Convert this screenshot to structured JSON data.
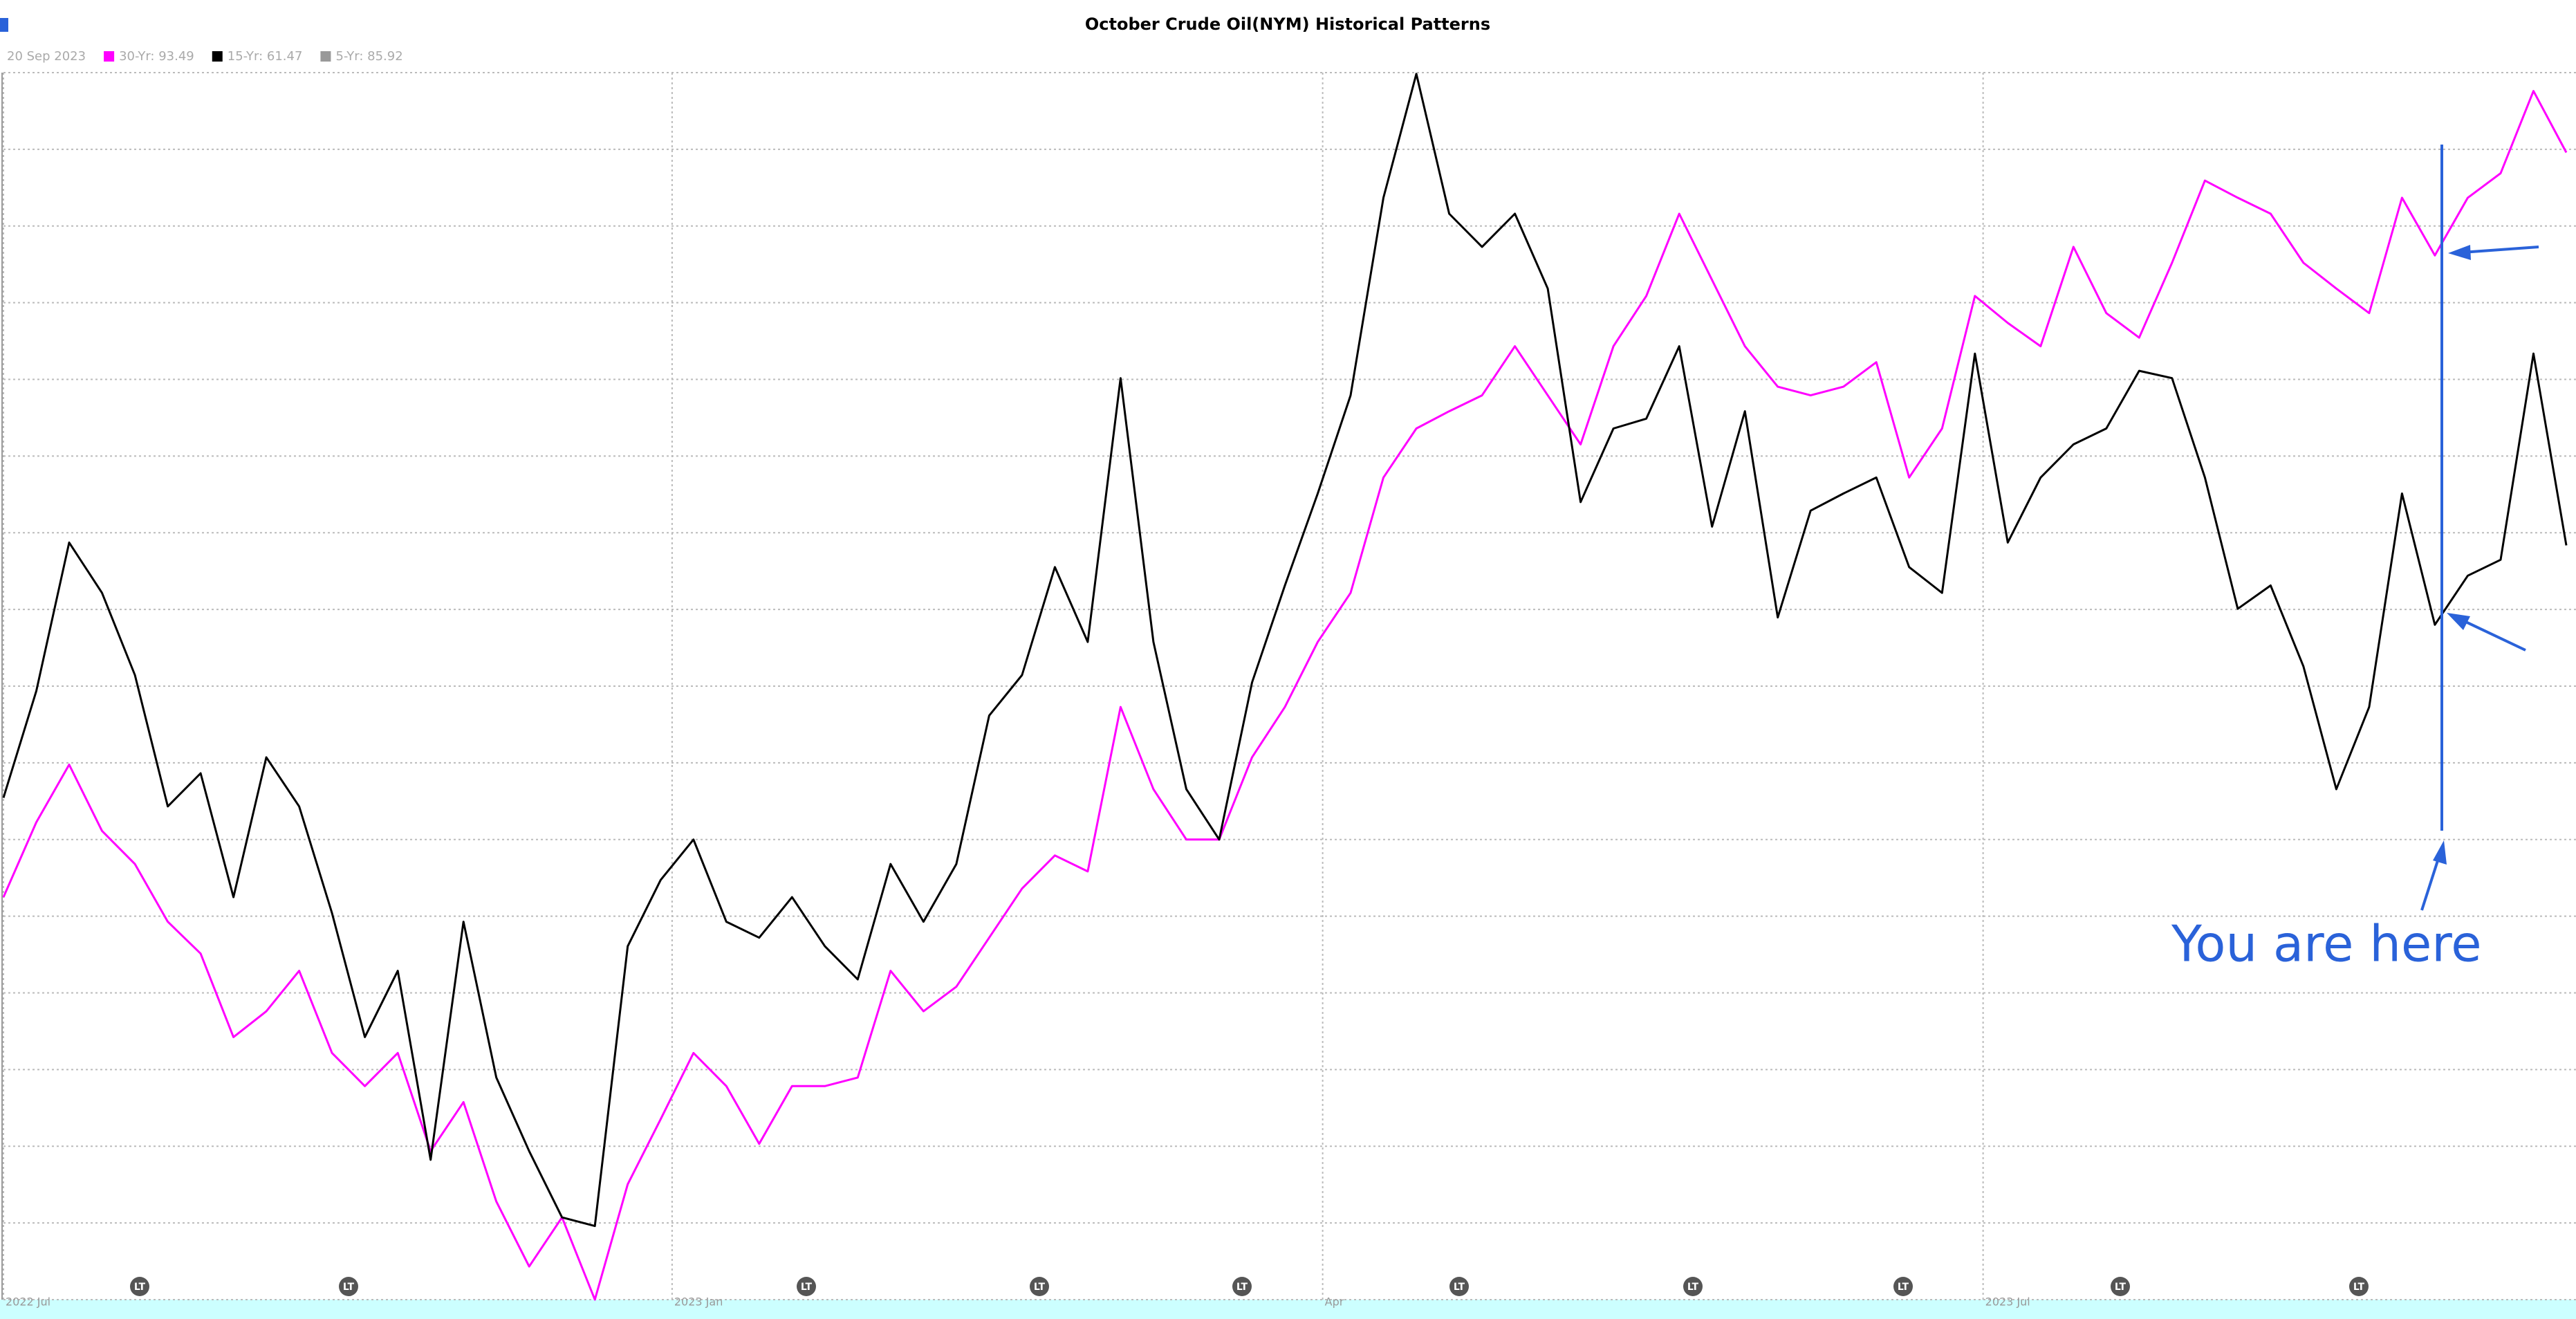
{
  "chart_data": {
    "type": "line",
    "title": "October Crude Oil(NYM) Historical Patterns",
    "legend_date": "20 Sep 2023",
    "annotation": "You are here",
    "event_labels": [
      "LT",
      "LT",
      "LT",
      "LT",
      "LT",
      "LT",
      "LT",
      "LT",
      "LT",
      "LT"
    ],
    "xlim": [
      0,
      78
    ],
    "xticks": [
      {
        "value": 0,
        "label": "2022 Jul"
      },
      {
        "value": 20.35,
        "label": "2023 Jan"
      },
      {
        "value": 40.15,
        "label": "Apr"
      },
      {
        "value": 60.25,
        "label": "2023 Jul"
      }
    ],
    "ylim": [
      0,
      100
    ],
    "yticks": [
      0,
      6.25,
      12.5,
      18.75,
      25,
      31.25,
      37.5,
      43.75,
      50,
      56.25,
      62.5,
      68.75,
      75,
      81.25,
      87.5,
      93.75,
      100
    ],
    "grid": true,
    "series": [
      {
        "name": "30-Yr: 93.49",
        "color": "#ff00ff",
        "values": [
          32.8,
          38.9,
          43.6,
          38.2,
          35.5,
          30.8,
          28.2,
          21.4,
          23.5,
          26.8,
          20.1,
          17.4,
          20.1,
          12.1,
          16.1,
          8.0,
          2.7,
          6.7,
          0,
          9.4,
          14.7,
          20.1,
          17.4,
          12.7,
          17.4,
          17.4,
          18.1,
          26.8,
          23.5,
          25.5,
          29.5,
          33.5,
          36.2,
          34.9,
          48.3,
          41.6,
          37.5,
          37.5,
          44.2,
          48.3,
          53.6,
          57.6,
          67.0,
          71.0,
          72.4,
          73.7,
          77.7,
          73.7,
          69.7,
          77.7,
          81.8,
          88.5,
          83.1,
          77.7,
          74.4,
          73.7,
          74.4,
          76.4,
          67.0,
          71.0,
          81.8,
          79.6,
          77.7,
          85.8,
          80.4,
          78.4,
          84.5,
          91.2,
          89.8,
          88.5,
          84.5,
          82.4,
          80.4,
          89.8,
          85.1,
          89.8,
          91.8,
          98.5,
          93.49
        ]
      },
      {
        "name": "15-Yr: 61.47",
        "color": "#000000",
        "values": [
          40.9,
          49.6,
          61.7,
          57.6,
          50.9,
          40.2,
          42.9,
          32.8,
          44.2,
          40.2,
          31.5,
          21.4,
          26.8,
          11.4,
          30.8,
          18.1,
          12.1,
          6.7,
          6.0,
          28.8,
          34.2,
          37.5,
          30.8,
          29.5,
          32.8,
          28.8,
          26.1,
          35.5,
          30.8,
          35.5,
          47.6,
          50.9,
          59.7,
          53.6,
          75.1,
          53.6,
          41.6,
          37.5,
          50.3,
          58.2,
          65.7,
          73.7,
          89.8,
          99.9,
          88.5,
          85.8,
          88.5,
          82.4,
          65.0,
          71.0,
          71.8,
          77.7,
          63.0,
          72.4,
          55.6,
          64.3,
          65.7,
          67.0,
          59.7,
          57.6,
          77.1,
          61.7,
          67.0,
          69.7,
          71.0,
          75.7,
          75.1,
          67.0,
          56.3,
          58.2,
          51.6,
          41.6,
          48.3,
          65.7,
          55.0,
          59.0,
          60.3,
          77.1,
          61.47
        ]
      }
    ],
    "hidden_series": {
      "name": "5-Yr: 85.92",
      "color": "#999999"
    }
  }
}
